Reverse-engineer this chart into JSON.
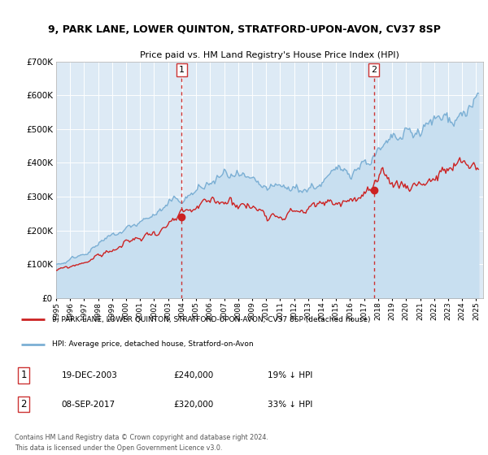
{
  "title": "9, PARK LANE, LOWER QUINTON, STRATFORD-UPON-AVON, CV37 8SP",
  "subtitle": "Price paid vs. HM Land Registry's House Price Index (HPI)",
  "legend_line1": "9, PARK LANE, LOWER QUINTON, STRATFORD-UPON-AVON, CV37 8SP (detached house)",
  "legend_line2": "HPI: Average price, detached house, Stratford-on-Avon",
  "annotation1_date": "19-DEC-2003",
  "annotation1_price": "£240,000",
  "annotation1_hpi": "19% ↓ HPI",
  "annotation2_date": "08-SEP-2017",
  "annotation2_price": "£320,000",
  "annotation2_hpi": "33% ↓ HPI",
  "footer1": "Contains HM Land Registry data © Crown copyright and database right 2024.",
  "footer2": "This data is licensed under the Open Government Licence v3.0.",
  "hpi_color": "#7bafd4",
  "hpi_fill_color": "#c8dff0",
  "price_color": "#cc2222",
  "vline_color": "#cc3333",
  "bg_color": "#ddeaf5",
  "ylim": [
    0,
    700000
  ],
  "yticks": [
    0,
    100000,
    200000,
    300000,
    400000,
    500000,
    600000,
    700000
  ],
  "sale1_x": 2003.97,
  "sale1_y": 240000,
  "sale2_x": 2017.69,
  "sale2_y": 320000,
  "xmin": 1995.0,
  "xmax": 2025.5
}
